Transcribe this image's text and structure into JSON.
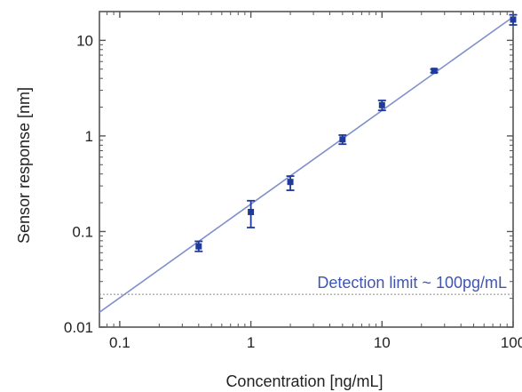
{
  "chart_data": {
    "type": "scatter",
    "xlabel": "Concentration [ng/mL]",
    "ylabel": "Sensor response [nm]",
    "x_scale": "log",
    "y_scale": "log",
    "xlim": [
      0.07,
      100
    ],
    "ylim": [
      0.01,
      20
    ],
    "grid": false,
    "x_ticks": [
      0.1,
      1,
      10,
      100
    ],
    "x_tick_labels": [
      "0.1",
      "1",
      "10",
      "100"
    ],
    "y_ticks": [
      0.01,
      0.1,
      1,
      10
    ],
    "y_tick_labels": [
      "0.01",
      "0.1",
      "1",
      "10"
    ],
    "series": [
      {
        "values": [
          {
            "x": 0.4,
            "y": 0.07,
            "err_low": 0.062,
            "err_high": 0.079
          },
          {
            "x": 1,
            "y": 0.16,
            "err_low": 0.11,
            "err_high": 0.21
          },
          {
            "x": 2,
            "y": 0.33,
            "err_low": 0.27,
            "err_high": 0.38
          },
          {
            "x": 5,
            "y": 0.92,
            "err_low": 0.82,
            "err_high": 1.02
          },
          {
            "x": 10,
            "y": 2.1,
            "err_low": 1.85,
            "err_high": 2.35
          },
          {
            "x": 25,
            "y": 4.8,
            "err_low": 4.6,
            "err_high": 5.0
          },
          {
            "x": 100,
            "y": 16.5,
            "err_low": 14.5,
            "err_high": 18.5
          }
        ]
      }
    ],
    "fit_line": {
      "x": [
        0.07,
        100
      ],
      "y": [
        0.0143,
        17.6
      ]
    },
    "detection_limit": {
      "y": 0.022,
      "label": "Detection limit ~ 100pg/mL"
    },
    "colors": {
      "marker": "#1f3a9a",
      "fit": "#8090cc",
      "annotation": "#3f56b0",
      "detection_line": "#8a8a8a",
      "frame": "#555555"
    }
  }
}
